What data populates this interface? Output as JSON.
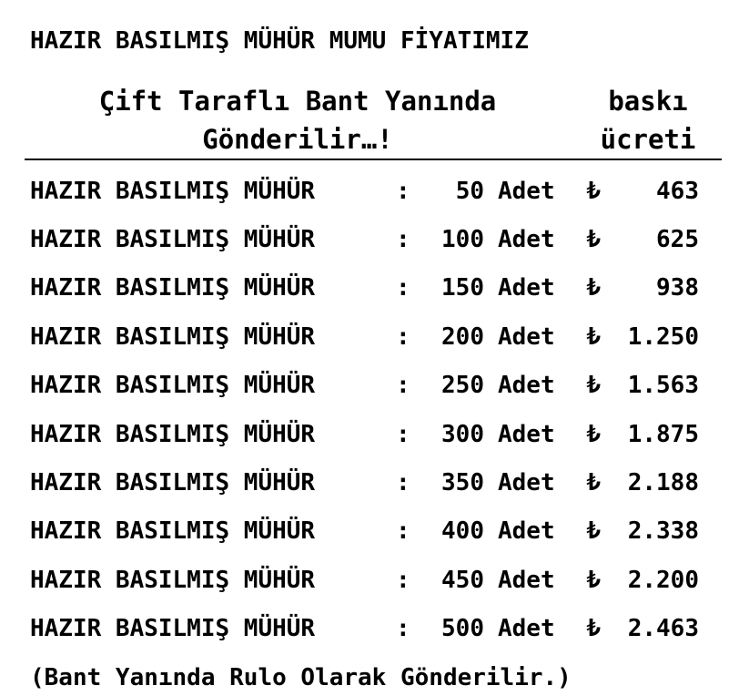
{
  "page": {
    "title": "HAZIR BASILMIŞ MÜHÜR MUMU FİYATIMIZ",
    "footer": "(Bant Yanında Rulo Olarak Gönderilir.)"
  },
  "header": {
    "shipping_note_line1": "Çift Taraflı Bant Yanında",
    "shipping_note_line2": "Gönderilir…!",
    "price_col_line1": "baskı",
    "price_col_line2": "ücreti"
  },
  "table": {
    "rows": [
      {
        "label": "HAZIR BASILMIŞ MÜHÜR",
        "colon": ":",
        "qty": "50",
        "unit": "Adet",
        "currency": "₺",
        "price": "463"
      },
      {
        "label": "HAZIR BASILMIŞ MÜHÜR",
        "colon": ":",
        "qty": "100",
        "unit": "Adet",
        "currency": "₺",
        "price": "625"
      },
      {
        "label": "HAZIR BASILMIŞ MÜHÜR",
        "colon": ":",
        "qty": "150",
        "unit": "Adet",
        "currency": "₺",
        "price": "938"
      },
      {
        "label": "HAZIR BASILMIŞ MÜHÜR",
        "colon": ":",
        "qty": "200",
        "unit": "Adet",
        "currency": "₺",
        "price": "1.250"
      },
      {
        "label": "HAZIR BASILMIŞ MÜHÜR",
        "colon": ":",
        "qty": "250",
        "unit": "Adet",
        "currency": "₺",
        "price": "1.563"
      },
      {
        "label": "HAZIR BASILMIŞ MÜHÜR",
        "colon": ":",
        "qty": "300",
        "unit": "Adet",
        "currency": "₺",
        "price": "1.875"
      },
      {
        "label": "HAZIR BASILMIŞ MÜHÜR",
        "colon": ":",
        "qty": "350",
        "unit": "Adet",
        "currency": "₺",
        "price": "2.188"
      },
      {
        "label": "HAZIR BASILMIŞ MÜHÜR",
        "colon": ":",
        "qty": "400",
        "unit": "Adet",
        "currency": "₺",
        "price": "2.338"
      },
      {
        "label": "HAZIR BASILMIŞ MÜHÜR",
        "colon": ":",
        "qty": "450",
        "unit": "Adet",
        "currency": "₺",
        "price": "2.200"
      },
      {
        "label": "HAZIR BASILMIŞ MÜHÜR",
        "colon": ":",
        "qty": "500",
        "unit": "Adet",
        "currency": "₺",
        "price": "2.463"
      }
    ]
  },
  "colors": {
    "text": "#000000",
    "background": "#ffffff",
    "rule": "#000000"
  }
}
